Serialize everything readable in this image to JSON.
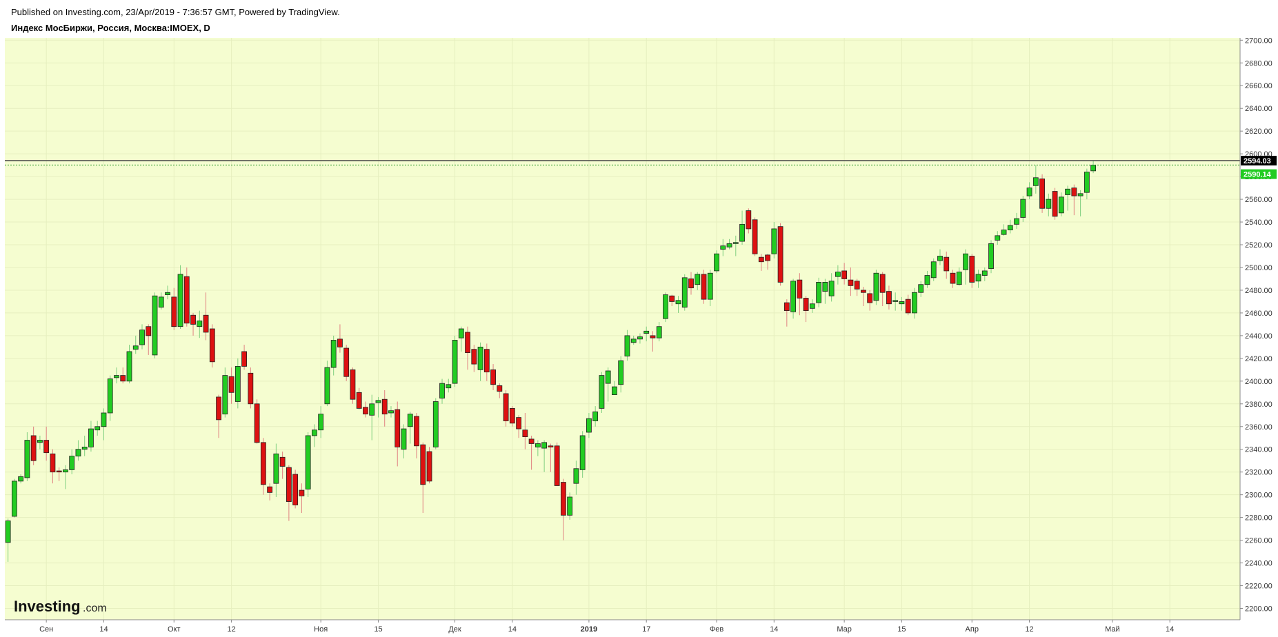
{
  "header": {
    "published": "Published on Investing.com, 23/Apr/2019 - 7:36:57 GMT, Powered by TradingView.",
    "instrument": "Индекс МосБиржи, Россия, Москва:IMOEX, D"
  },
  "logo": {
    "main": "Investing",
    "suffix": ".com"
  },
  "colors": {
    "plot_bg": "#f5fdd0",
    "up": "#22cc22",
    "down": "#dd1111",
    "last_price_tag": "#000000",
    "current_price_tag": "#22cc22"
  },
  "chart_data": {
    "type": "candlestick",
    "title": "Индекс МосБиржи, Россия, Москва:IMOEX, D",
    "ylim": [
      2190,
      2702
    ],
    "y_ticks": [
      "2200.00",
      "2220.00",
      "2240.00",
      "2260.00",
      "2280.00",
      "2300.00",
      "2320.00",
      "2340.00",
      "2360.00",
      "2380.00",
      "2400.00",
      "2420.00",
      "2440.00",
      "2460.00",
      "2480.00",
      "2500.00",
      "2520.00",
      "2540.00",
      "2560.00",
      "2580.00",
      "2600.00",
      "2620.00",
      "2640.00",
      "2660.00",
      "2680.00",
      "2700.00"
    ],
    "x_ticks": [
      {
        "label": "Сен",
        "index": 6
      },
      {
        "label": "14",
        "index": 15
      },
      {
        "label": "Окт",
        "index": 26
      },
      {
        "label": "12",
        "index": 35
      },
      {
        "label": "Ноя",
        "index": 49
      },
      {
        "label": "15",
        "index": 58
      },
      {
        "label": "Дек",
        "index": 70
      },
      {
        "label": "14",
        "index": 79
      },
      {
        "label": "2019",
        "index": 91
      },
      {
        "label": "17",
        "index": 100
      },
      {
        "label": "Фев",
        "index": 111
      },
      {
        "label": "14",
        "index": 120
      },
      {
        "label": "Мар",
        "index": 131
      },
      {
        "label": "15",
        "index": 140
      },
      {
        "label": "Апр",
        "index": 151
      },
      {
        "label": "12",
        "index": 160
      },
      {
        "label": "Май",
        "index": 173
      },
      {
        "label": "14",
        "index": 182
      }
    ],
    "x_range": [
      -0.5,
      193
    ],
    "last_price_line": 2594.03,
    "current_price": 2590.14,
    "price_tags": {
      "last": "2594.03",
      "current": "2590.14"
    },
    "candles": [
      [
        2258,
        2277,
        2241,
        2279
      ],
      [
        2281,
        2312,
        2280,
        2314
      ],
      [
        2312,
        2316,
        2310,
        2318
      ],
      [
        2315,
        2348,
        2312,
        2355
      ],
      [
        2352,
        2330,
        2326,
        2360
      ],
      [
        2346,
        2348,
        2340,
        2352
      ],
      [
        2348,
        2337,
        2330,
        2360
      ],
      [
        2336,
        2320,
        2310,
        2340
      ],
      [
        2321,
        2320,
        2312,
        2324
      ],
      [
        2320,
        2322,
        2305,
        2326
      ],
      [
        2322,
        2334,
        2318,
        2340
      ],
      [
        2334,
        2340,
        2330,
        2348
      ],
      [
        2340,
        2342,
        2334,
        2352
      ],
      [
        2342,
        2358,
        2338,
        2365
      ],
      [
        2357,
        2360,
        2352,
        2365
      ],
      [
        2360,
        2372,
        2348,
        2376
      ],
      [
        2372,
        2402,
        2365,
        2405
      ],
      [
        2403,
        2405,
        2398,
        2412
      ],
      [
        2405,
        2400,
        2398,
        2412
      ],
      [
        2400,
        2426,
        2398,
        2432
      ],
      [
        2428,
        2431,
        2424,
        2440
      ],
      [
        2432,
        2445,
        2428,
        2450
      ],
      [
        2448,
        2440,
        2423,
        2450
      ],
      [
        2423,
        2475,
        2420,
        2478
      ],
      [
        2465,
        2474,
        2463,
        2478
      ],
      [
        2476,
        2478,
        2472,
        2484
      ],
      [
        2474,
        2448,
        2445,
        2482
      ],
      [
        2448,
        2494,
        2446,
        2502
      ],
      [
        2492,
        2451,
        2448,
        2500
      ],
      [
        2458,
        2450,
        2440,
        2460
      ],
      [
        2448,
        2453,
        2438,
        2462
      ],
      [
        2458,
        2443,
        2436,
        2478
      ],
      [
        2446,
        2417,
        2412,
        2450
      ],
      [
        2386,
        2366,
        2350,
        2388
      ],
      [
        2371,
        2405,
        2368,
        2412
      ],
      [
        2404,
        2390,
        2380,
        2412
      ],
      [
        2382,
        2413,
        2376,
        2420
      ],
      [
        2426,
        2413,
        2410,
        2432
      ],
      [
        2407,
        2380,
        2376,
        2412
      ],
      [
        2380,
        2346,
        2345,
        2384
      ],
      [
        2346,
        2309,
        2300,
        2350
      ],
      [
        2307,
        2302,
        2295,
        2310
      ],
      [
        2310,
        2336,
        2298,
        2345
      ],
      [
        2333,
        2325,
        2314,
        2338
      ],
      [
        2324,
        2294,
        2277,
        2326
      ],
      [
        2318,
        2291,
        2288,
        2322
      ],
      [
        2304,
        2299,
        2284,
        2310
      ],
      [
        2305,
        2352,
        2298,
        2355
      ],
      [
        2352,
        2357,
        2342,
        2362
      ],
      [
        2357,
        2371,
        2350,
        2378
      ],
      [
        2380,
        2412,
        2378,
        2418
      ],
      [
        2412,
        2436,
        2405,
        2440
      ],
      [
        2437,
        2430,
        2425,
        2450
      ],
      [
        2429,
        2404,
        2400,
        2432
      ],
      [
        2410,
        2384,
        2380,
        2412
      ],
      [
        2390,
        2376,
        2375,
        2394
      ],
      [
        2377,
        2371,
        2368,
        2382
      ],
      [
        2370,
        2380,
        2348,
        2388
      ],
      [
        2381,
        2383,
        2368,
        2386
      ],
      [
        2384,
        2371,
        2360,
        2392
      ],
      [
        2372,
        2374,
        2368,
        2378
      ],
      [
        2375,
        2342,
        2325,
        2382
      ],
      [
        2340,
        2358,
        2332,
        2362
      ],
      [
        2360,
        2371,
        2345,
        2373
      ],
      [
        2369,
        2343,
        2332,
        2372
      ],
      [
        2344,
        2309,
        2284,
        2346
      ],
      [
        2338,
        2312,
        2310,
        2342
      ],
      [
        2342,
        2382,
        2340,
        2385
      ],
      [
        2385,
        2398,
        2380,
        2402
      ],
      [
        2394,
        2397,
        2390,
        2402
      ],
      [
        2398,
        2436,
        2395,
        2440
      ],
      [
        2438,
        2446,
        2426,
        2448
      ],
      [
        2443,
        2425,
        2410,
        2448
      ],
      [
        2428,
        2415,
        2408,
        2432
      ],
      [
        2410,
        2430,
        2400,
        2434
      ],
      [
        2428,
        2408,
        2400,
        2433
      ],
      [
        2410,
        2397,
        2392,
        2415
      ],
      [
        2396,
        2391,
        2385,
        2398
      ],
      [
        2389,
        2365,
        2360,
        2392
      ],
      [
        2376,
        2363,
        2360,
        2378
      ],
      [
        2368,
        2358,
        2350,
        2370
      ],
      [
        2357,
        2351,
        2340,
        2372
      ],
      [
        2349,
        2345,
        2322,
        2352
      ],
      [
        2342,
        2345,
        2334,
        2348
      ],
      [
        2341,
        2346,
        2320,
        2348
      ],
      [
        2343,
        2342,
        2320,
        2345
      ],
      [
        2343,
        2308,
        2308,
        2346
      ],
      [
        2311,
        2282,
        2260,
        2314
      ],
      [
        2282,
        2298,
        2278,
        2302
      ],
      [
        2310,
        2323,
        2300,
        2330
      ],
      [
        2322,
        2352,
        2315,
        2356
      ],
      [
        2355,
        2367,
        2350,
        2372
      ],
      [
        2365,
        2373,
        2360,
        2378
      ],
      [
        2376,
        2405,
        2372,
        2408
      ],
      [
        2398,
        2409,
        2382,
        2412
      ],
      [
        2388,
        2395,
        2388,
        2400
      ],
      [
        2397,
        2418,
        2390,
        2422
      ],
      [
        2422,
        2440,
        2418,
        2445
      ],
      [
        2434,
        2437,
        2432,
        2440
      ],
      [
        2437,
        2439,
        2433,
        2442
      ],
      [
        2442,
        2444,
        2435,
        2448
      ],
      [
        2440,
        2438,
        2426,
        2444
      ],
      [
        2438,
        2448,
        2435,
        2452
      ],
      [
        2455,
        2476,
        2452,
        2478
      ],
      [
        2475,
        2470,
        2466,
        2476
      ],
      [
        2468,
        2471,
        2460,
        2475
      ],
      [
        2465,
        2491,
        2462,
        2494
      ],
      [
        2490,
        2482,
        2476,
        2496
      ],
      [
        2485,
        2494,
        2480,
        2496
      ],
      [
        2494,
        2472,
        2468,
        2498
      ],
      [
        2472,
        2495,
        2466,
        2498
      ],
      [
        2497,
        2512,
        2495,
        2515
      ],
      [
        2516,
        2519,
        2510,
        2525
      ],
      [
        2518,
        2521,
        2516,
        2525
      ],
      [
        2521,
        2522,
        2510,
        2528
      ],
      [
        2523,
        2538,
        2520,
        2550
      ],
      [
        2550,
        2534,
        2530,
        2552
      ],
      [
        2542,
        2512,
        2510,
        2544
      ],
      [
        2509,
        2505,
        2497,
        2512
      ],
      [
        2511,
        2506,
        2498,
        2512
      ],
      [
        2512,
        2534,
        2508,
        2540
      ],
      [
        2536,
        2487,
        2484,
        2539
      ],
      [
        2469,
        2462,
        2448,
        2472
      ],
      [
        2461,
        2488,
        2455,
        2490
      ],
      [
        2489,
        2473,
        2458,
        2495
      ],
      [
        2473,
        2462,
        2452,
        2475
      ],
      [
        2464,
        2468,
        2460,
        2472
      ],
      [
        2469,
        2487,
        2465,
        2491
      ],
      [
        2479,
        2487,
        2468,
        2490
      ],
      [
        2475,
        2488,
        2470,
        2495
      ],
      [
        2492,
        2496,
        2485,
        2502
      ],
      [
        2497,
        2490,
        2485,
        2504
      ],
      [
        2489,
        2484,
        2475,
        2500
      ],
      [
        2488,
        2481,
        2475,
        2490
      ],
      [
        2480,
        2478,
        2466,
        2483
      ],
      [
        2477,
        2469,
        2462,
        2480
      ],
      [
        2471,
        2495,
        2467,
        2498
      ],
      [
        2494,
        2478,
        2466,
        2496
      ],
      [
        2479,
        2468,
        2463,
        2484
      ],
      [
        2470,
        2471,
        2462,
        2478
      ],
      [
        2468,
        2470,
        2462,
        2474
      ],
      [
        2472,
        2460,
        2458,
        2476
      ],
      [
        2460,
        2478,
        2455,
        2482
      ],
      [
        2478,
        2485,
        2474,
        2488
      ],
      [
        2485,
        2493,
        2482,
        2497
      ],
      [
        2491,
        2505,
        2488,
        2508
      ],
      [
        2506,
        2510,
        2502,
        2516
      ],
      [
        2509,
        2497,
        2490,
        2514
      ],
      [
        2495,
        2486,
        2482,
        2498
      ],
      [
        2485,
        2496,
        2484,
        2500
      ],
      [
        2498,
        2512,
        2485,
        2516
      ],
      [
        2510,
        2487,
        2482,
        2512
      ],
      [
        2488,
        2494,
        2482,
        2498
      ],
      [
        2493,
        2497,
        2488,
        2500
      ],
      [
        2499,
        2521,
        2495,
        2524
      ],
      [
        2524,
        2528,
        2520,
        2532
      ],
      [
        2529,
        2533,
        2528,
        2538
      ],
      [
        2533,
        2537,
        2530,
        2542
      ],
      [
        2538,
        2543,
        2534,
        2548
      ],
      [
        2544,
        2560,
        2540,
        2563
      ],
      [
        2563,
        2570,
        2560,
        2575
      ],
      [
        2572,
        2579,
        2565,
        2590
      ],
      [
        2578,
        2552,
        2548,
        2582
      ],
      [
        2552,
        2560,
        2545,
        2565
      ],
      [
        2567,
        2545,
        2542,
        2570
      ],
      [
        2548,
        2562,
        2545,
        2566
      ],
      [
        2564,
        2569,
        2550,
        2572
      ],
      [
        2570,
        2563,
        2546,
        2573
      ],
      [
        2563,
        2565,
        2545,
        2568
      ],
      [
        2566,
        2584,
        2560,
        2587
      ],
      [
        2585,
        2590,
        2583,
        2594
      ]
    ]
  }
}
